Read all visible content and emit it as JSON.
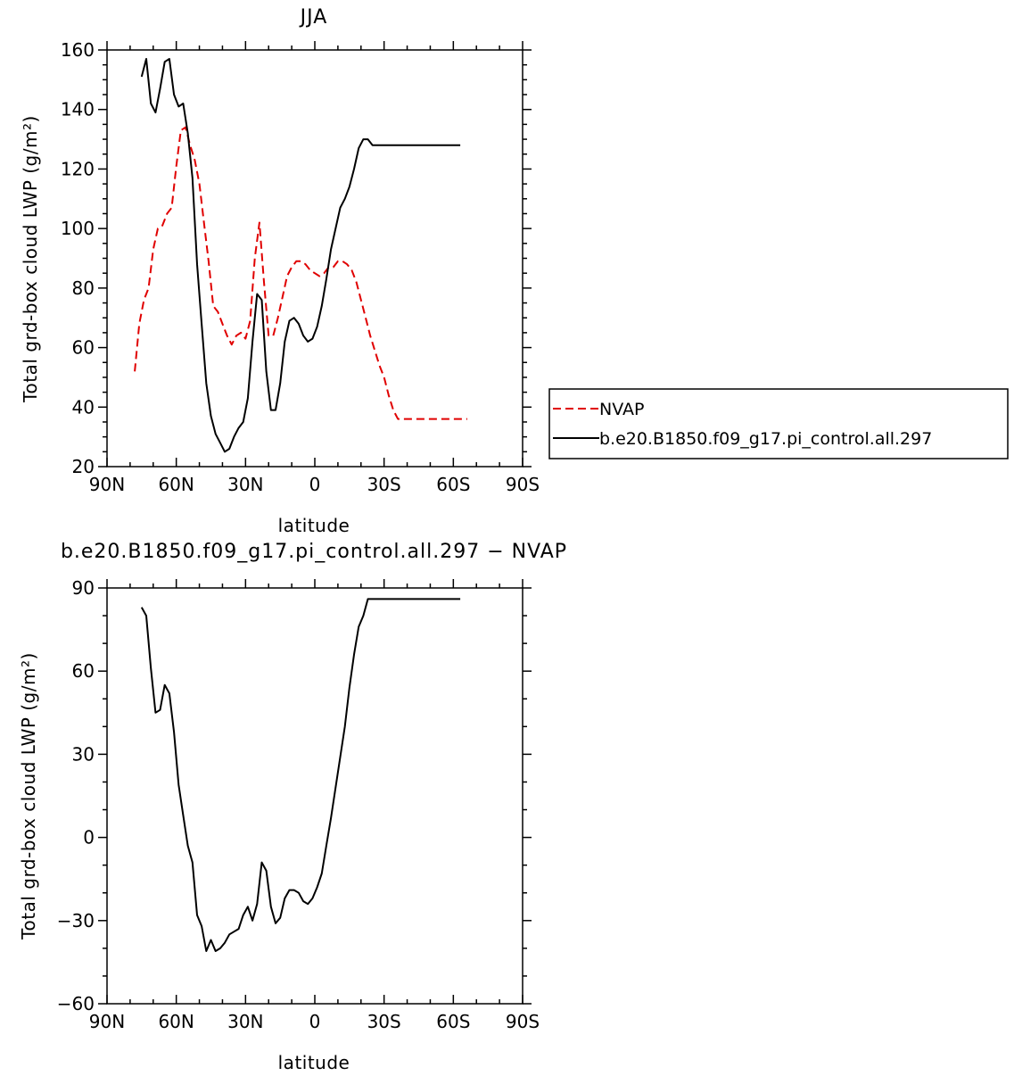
{
  "chart_data": [
    {
      "type": "line",
      "title": "JJA",
      "xlabel": "latitude",
      "ylabel": "Total grd-box cloud LWP (g/m²)",
      "xlim": [
        -90,
        90
      ],
      "ylim": [
        20,
        160
      ],
      "x_ticks": [
        -90,
        -60,
        -30,
        0,
        30,
        60,
        90
      ],
      "x_tick_labels": [
        "90N",
        "60N",
        "30N",
        "0",
        "30S",
        "60S",
        "90S"
      ],
      "y_ticks": [
        20,
        40,
        60,
        80,
        100,
        120,
        140,
        160
      ],
      "y_tick_labels": [
        "20",
        "40",
        "60",
        "80",
        "100",
        "120",
        "140",
        "160"
      ],
      "legend_position": "right",
      "series": [
        {
          "name": "NVAP",
          "color": "#e00000",
          "dash": "dashed",
          "x": [
            -78,
            -76,
            -74,
            -72,
            -70,
            -68,
            -66,
            -64,
            -62,
            -60,
            -58,
            -56,
            -54,
            -52,
            -50,
            -48,
            -46,
            -44,
            -42,
            -40,
            -38,
            -36,
            -34,
            -32,
            -30,
            -28,
            -26,
            -24,
            -22,
            -20,
            -18,
            -16,
            -14,
            -12,
            -10,
            -8,
            -6,
            -4,
            -2,
            0,
            2,
            4,
            6,
            8,
            10,
            12,
            14,
            16,
            18,
            20,
            22,
            24,
            26,
            28,
            30,
            32,
            34,
            36,
            38,
            40,
            42,
            44,
            46,
            48,
            50,
            52,
            54,
            56,
            58,
            60,
            62,
            64,
            66
          ],
          "y": [
            52,
            68,
            76,
            80,
            93,
            100,
            101,
            105,
            107,
            121,
            133,
            134,
            128,
            123,
            115,
            102,
            89,
            74,
            72,
            68,
            64,
            61,
            64,
            65,
            63,
            69,
            90,
            102,
            82,
            64,
            64,
            70,
            77,
            84,
            87,
            89,
            89,
            88,
            86,
            85,
            84,
            85,
            87,
            87,
            89,
            89,
            88,
            86,
            82,
            76,
            70,
            64,
            59,
            54,
            50,
            44,
            39,
            36,
            36,
            36,
            36,
            36,
            36,
            36,
            36,
            36,
            36,
            36,
            36,
            36,
            36,
            36,
            36
          ]
        },
        {
          "name": "b.e20.B1850.f09_g17.pi_control.all.297",
          "color": "#000000",
          "dash": "solid",
          "x": [
            -75,
            -73,
            -71,
            -69,
            -67,
            -65,
            -63,
            -61,
            -59,
            -57,
            -55,
            -53,
            -51,
            -49,
            -47,
            -45,
            -43,
            -41,
            -39,
            -37,
            -35,
            -33,
            -31,
            -29,
            -27,
            -25,
            -23,
            -21,
            -19,
            -17,
            -15,
            -13,
            -11,
            -9,
            -7,
            -5,
            -3,
            -1,
            1,
            3,
            5,
            7,
            9,
            11,
            13,
            15,
            17,
            19,
            21,
            23,
            25,
            27,
            29,
            31,
            33,
            35,
            37,
            39,
            41,
            43,
            45,
            47,
            49,
            51,
            53,
            55,
            57,
            59,
            61,
            63
          ],
          "y": [
            151,
            157,
            142,
            139,
            147,
            156,
            157,
            145,
            141,
            142,
            132,
            117,
            88,
            68,
            48,
            37,
            31,
            28,
            25,
            26,
            30,
            33,
            35,
            43,
            62,
            78,
            76,
            52,
            39,
            39,
            48,
            62,
            69,
            70,
            68,
            64,
            62,
            63,
            67,
            74,
            83,
            93,
            100,
            107,
            110,
            114,
            120,
            127,
            130,
            130,
            128,
            128,
            128,
            128,
            128,
            128,
            128,
            128,
            128,
            128,
            128,
            128,
            128,
            128,
            128,
            128,
            128,
            128,
            128,
            128
          ]
        }
      ]
    },
    {
      "type": "line",
      "title": "b.e20.B1850.f09_g17.pi_control.all.297 − NVAP",
      "xlabel": "latitude",
      "ylabel": "Total grd-box cloud LWP (g/m²)",
      "xlim": [
        -90,
        90
      ],
      "ylim": [
        -60,
        90
      ],
      "x_ticks": [
        -90,
        -60,
        -30,
        0,
        30,
        60,
        90
      ],
      "x_tick_labels": [
        "90N",
        "60N",
        "30N",
        "0",
        "30S",
        "60S",
        "90S"
      ],
      "y_ticks": [
        -60,
        -30,
        0,
        30,
        60,
        90
      ],
      "y_tick_labels": [
        "−60",
        "−30",
        "0",
        "30",
        "60",
        "90"
      ],
      "series": [
        {
          "name": "",
          "color": "#000000",
          "dash": "solid",
          "x": [
            -75,
            -73,
            -71,
            -69,
            -67,
            -65,
            -63,
            -61,
            -59,
            -57,
            -55,
            -53,
            -51,
            -49,
            -47,
            -45,
            -43,
            -41,
            -39,
            -37,
            -35,
            -33,
            -31,
            -29,
            -27,
            -25,
            -23,
            -21,
            -19,
            -17,
            -15,
            -13,
            -11,
            -9,
            -7,
            -5,
            -3,
            -1,
            1,
            3,
            5,
            7,
            9,
            11,
            13,
            15,
            17,
            19,
            21,
            23,
            25,
            27,
            29,
            31,
            33,
            35,
            37,
            39,
            41,
            43,
            45,
            47,
            49,
            51,
            53,
            55,
            57,
            59,
            61,
            63
          ],
          "y": [
            83,
            80,
            61,
            45,
            46,
            55,
            52,
            38,
            19,
            8,
            -3,
            -9,
            -28,
            -32,
            -41,
            -37,
            -41,
            -40,
            -38,
            -35,
            -34,
            -33,
            -28,
            -25,
            -30,
            -24,
            -9,
            -12,
            -25,
            -31,
            -29,
            -22,
            -19,
            -19,
            -20,
            -23,
            -24,
            -22,
            -18,
            -13,
            -3,
            7,
            18,
            29,
            40,
            54,
            66,
            76,
            80,
            86,
            86,
            86,
            86,
            86,
            86,
            86,
            86,
            86,
            86,
            86,
            86,
            86,
            86,
            86,
            86,
            86,
            86,
            86,
            86,
            86
          ]
        }
      ]
    }
  ]
}
